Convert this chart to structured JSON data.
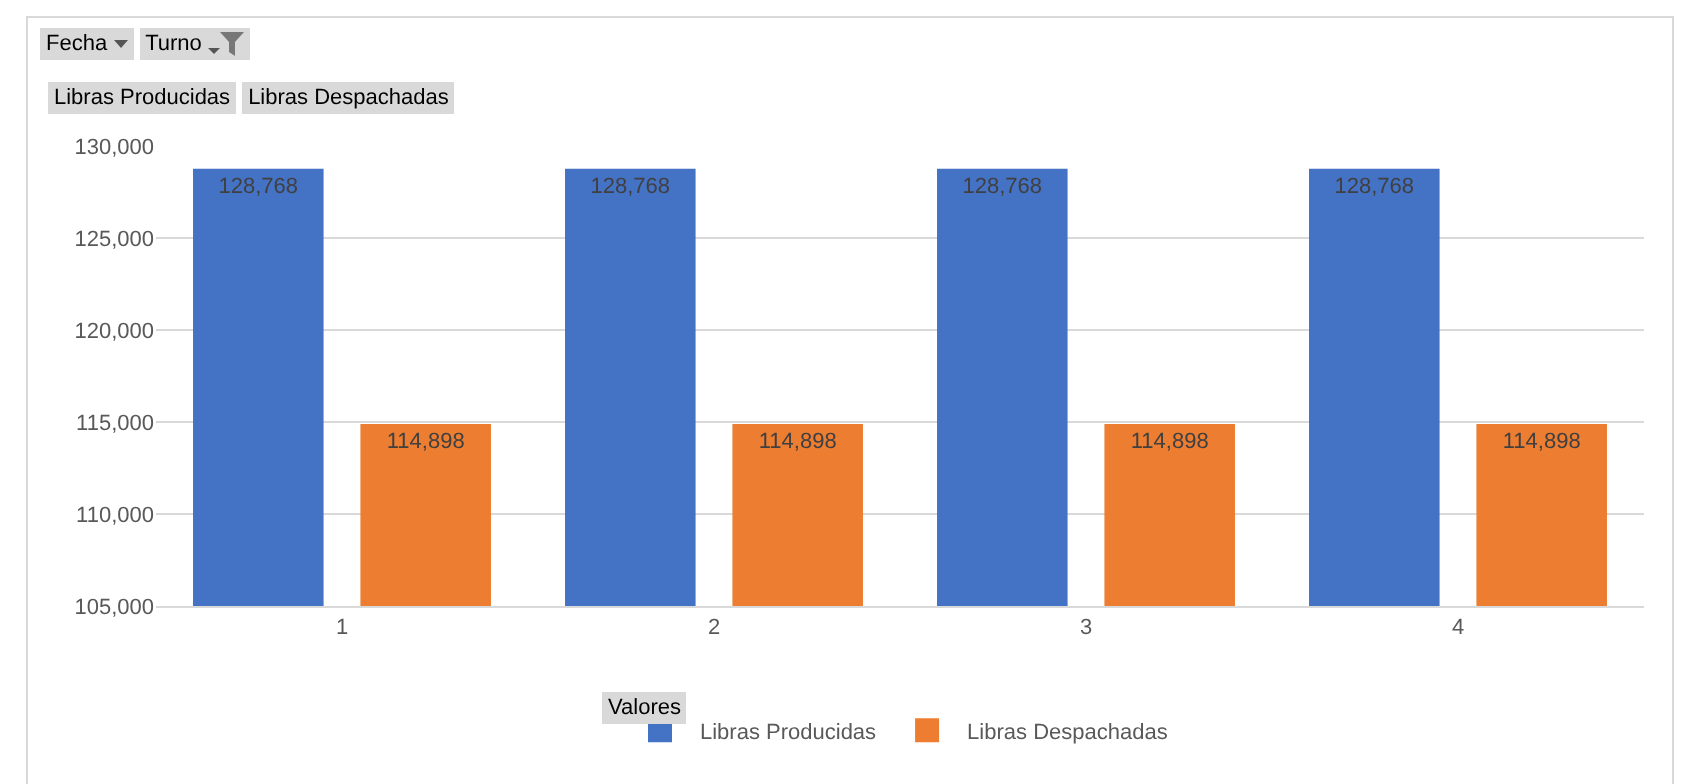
{
  "chart_data": {
    "type": "bar",
    "categories": [
      "1",
      "2",
      "3",
      "4"
    ],
    "series": [
      {
        "name": "Libras Producidas",
        "color": "#4472c4",
        "values": [
          128768,
          128768,
          128768,
          128768
        ],
        "value_labels": [
          "128,768",
          "128,768",
          "128,768",
          "128,768"
        ]
      },
      {
        "name": "Libras Despachadas",
        "color": "#ed7d31",
        "values": [
          114898,
          114898,
          114898,
          114898
        ],
        "value_labels": [
          "114,898",
          "114,898",
          "114,898",
          "114,898"
        ]
      }
    ],
    "ylim": [
      105000,
      130000
    ],
    "yticks": [
      {
        "value": 105000,
        "label": "105,000"
      },
      {
        "value": 110000,
        "label": "110,000"
      },
      {
        "value": 115000,
        "label": "115,000"
      },
      {
        "value": 120000,
        "label": "120,000"
      },
      {
        "value": 125000,
        "label": "125,000"
      },
      {
        "value": 130000,
        "label": "130,000"
      }
    ],
    "grid": "y",
    "legend": "bottom",
    "legend_title": "Valores",
    "annotations": [
      "Fecha",
      "Turno",
      "Libras Producidas",
      "Libras Despachadas"
    ]
  }
}
